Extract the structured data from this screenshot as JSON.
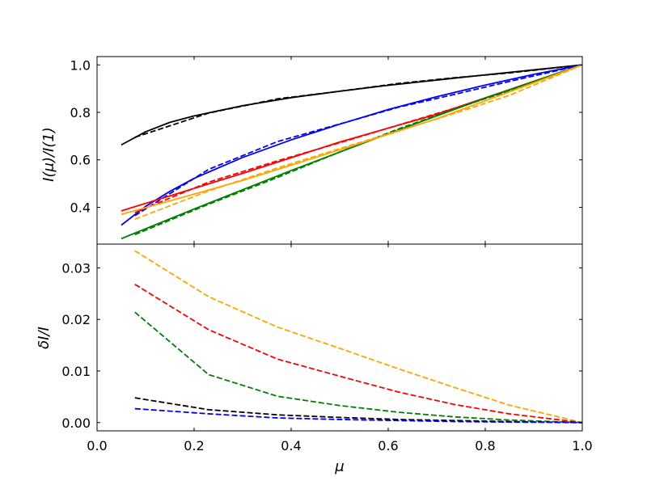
{
  "chart_data": [
    {
      "type": "line",
      "title": "",
      "xlabel": "",
      "ylabel": "I(μ)/I(1)",
      "xlim": [
        0.0,
        1.0
      ],
      "ylim": [
        0.245,
        1.035
      ],
      "yticks": [
        0.4,
        0.6,
        0.8,
        1.0
      ],
      "ytick_labels": [
        "0.4",
        "0.6",
        "0.8",
        "1.0"
      ],
      "grid": false,
      "legend": false,
      "series": [
        {
          "color": "#000000",
          "style": "solid",
          "x": [
            0.05,
            0.1,
            0.15,
            0.2,
            0.3,
            0.4,
            0.5,
            0.6,
            0.7,
            0.8,
            0.9,
            1.0
          ],
          "y": [
            0.663,
            0.718,
            0.758,
            0.785,
            0.828,
            0.862,
            0.889,
            0.914,
            0.936,
            0.958,
            0.979,
            1.0
          ]
        },
        {
          "color": "#000000",
          "style": "dashed",
          "x": [
            0.078,
            0.23,
            0.372,
            0.5,
            0.622,
            0.737,
            0.849,
            1.0
          ],
          "y": [
            0.695,
            0.797,
            0.857,
            0.889,
            0.922,
            0.946,
            0.966,
            1.0
          ]
        },
        {
          "color": "#0000ff",
          "style": "solid",
          "x": [
            0.05,
            0.1,
            0.15,
            0.2,
            0.3,
            0.4,
            0.5,
            0.6,
            0.7,
            0.8,
            0.9,
            1.0
          ],
          "y": [
            0.325,
            0.404,
            0.467,
            0.522,
            0.61,
            0.684,
            0.75,
            0.812,
            0.866,
            0.915,
            0.96,
            1.0
          ]
        },
        {
          "color": "#0000ff",
          "style": "dashed",
          "x": [
            0.078,
            0.23,
            0.372,
            0.5,
            0.622,
            0.737,
            0.849,
            1.0
          ],
          "y": [
            0.365,
            0.56,
            0.677,
            0.751,
            0.822,
            0.876,
            0.93,
            1.0
          ]
        },
        {
          "color": "#ff0000",
          "style": "solid",
          "x": [
            0.05,
            0.3,
            0.5,
            0.7,
            1.0
          ],
          "y": [
            0.385,
            0.543,
            0.675,
            0.792,
            1.0
          ]
        },
        {
          "color": "#ff0000",
          "style": "dashed",
          "x": [
            0.078,
            0.23,
            0.372,
            0.5,
            0.622,
            0.737,
            0.849,
            1.0
          ],
          "y": [
            0.378,
            0.506,
            0.596,
            0.672,
            0.747,
            0.818,
            0.889,
            1.0
          ]
        },
        {
          "color": "#008000",
          "style": "solid",
          "x": [
            0.05,
            0.2,
            0.4,
            0.6,
            0.8,
            1.0
          ],
          "y": [
            0.268,
            0.393,
            0.555,
            0.71,
            0.86,
            1.0
          ]
        },
        {
          "color": "#008000",
          "style": "dashed",
          "x": [
            0.078,
            0.23,
            0.372,
            0.5,
            0.622,
            0.737,
            0.849,
            1.0
          ],
          "y": [
            0.285,
            0.413,
            0.526,
            0.633,
            0.731,
            0.814,
            0.892,
            1.0
          ]
        },
        {
          "color": "#ffa500",
          "style": "solid",
          "x": [
            0.05,
            0.3,
            0.5,
            0.7,
            1.0
          ],
          "y": [
            0.37,
            0.513,
            0.642,
            0.773,
            1.0
          ]
        },
        {
          "color": "#ffa500",
          "style": "dashed",
          "x": [
            0.078,
            0.23,
            0.372,
            0.5,
            0.622,
            0.737,
            0.849,
            1.0
          ],
          "y": [
            0.35,
            0.469,
            0.566,
            0.647,
            0.723,
            0.796,
            0.871,
            1.0
          ]
        }
      ]
    },
    {
      "type": "line",
      "title": "",
      "xlabel": "μ",
      "ylabel": "δI/I",
      "xlim": [
        0.0,
        1.0
      ],
      "ylim": [
        -0.0016,
        0.0346
      ],
      "xticks": [
        0.0,
        0.2,
        0.4,
        0.6,
        0.8,
        1.0
      ],
      "xtick_labels": [
        "0.0",
        "0.2",
        "0.4",
        "0.6",
        "0.8",
        "1.0"
      ],
      "yticks": [
        0.0,
        0.01,
        0.02,
        0.03
      ],
      "ytick_labels": [
        "0.00",
        "0.01",
        "0.02",
        "0.03"
      ],
      "grid": false,
      "legend": false,
      "series": [
        {
          "color": "#ffa500",
          "style": "dashed",
          "x": [
            0.078,
            0.23,
            0.372,
            0.5,
            0.622,
            0.737,
            0.849,
            1.0
          ],
          "y": [
            0.0333,
            0.0244,
            0.0185,
            0.0144,
            0.0104,
            0.0068,
            0.0034,
            0.0
          ]
        },
        {
          "color": "#ff0000",
          "style": "dashed",
          "x": [
            0.078,
            0.23,
            0.372,
            0.5,
            0.622,
            0.737,
            0.849,
            1.0
          ],
          "y": [
            0.0268,
            0.018,
            0.0123,
            0.009,
            0.0059,
            0.0035,
            0.0017,
            0.0
          ]
        },
        {
          "color": "#008000",
          "style": "dashed",
          "x": [
            0.078,
            0.23,
            0.372,
            0.5,
            0.622,
            0.737,
            0.849,
            1.0
          ],
          "y": [
            0.0214,
            0.0093,
            0.0051,
            0.0033,
            0.002,
            0.0011,
            0.0005,
            0.0
          ]
        },
        {
          "color": "#000000",
          "style": "dashed",
          "x": [
            0.078,
            0.23,
            0.372,
            0.5,
            0.622,
            0.737,
            0.849,
            1.0
          ],
          "y": [
            0.0048,
            0.0025,
            0.0015,
            0.001,
            0.0006,
            0.0004,
            0.0002,
            0.0
          ]
        },
        {
          "color": "#0000ff",
          "style": "dashed",
          "x": [
            0.078,
            0.23,
            0.372,
            0.5,
            0.622,
            0.737,
            0.849,
            1.0
          ],
          "y": [
            0.0027,
            0.0017,
            0.0009,
            0.0006,
            0.0004,
            0.0002,
            0.0001,
            0.0
          ]
        }
      ]
    }
  ]
}
